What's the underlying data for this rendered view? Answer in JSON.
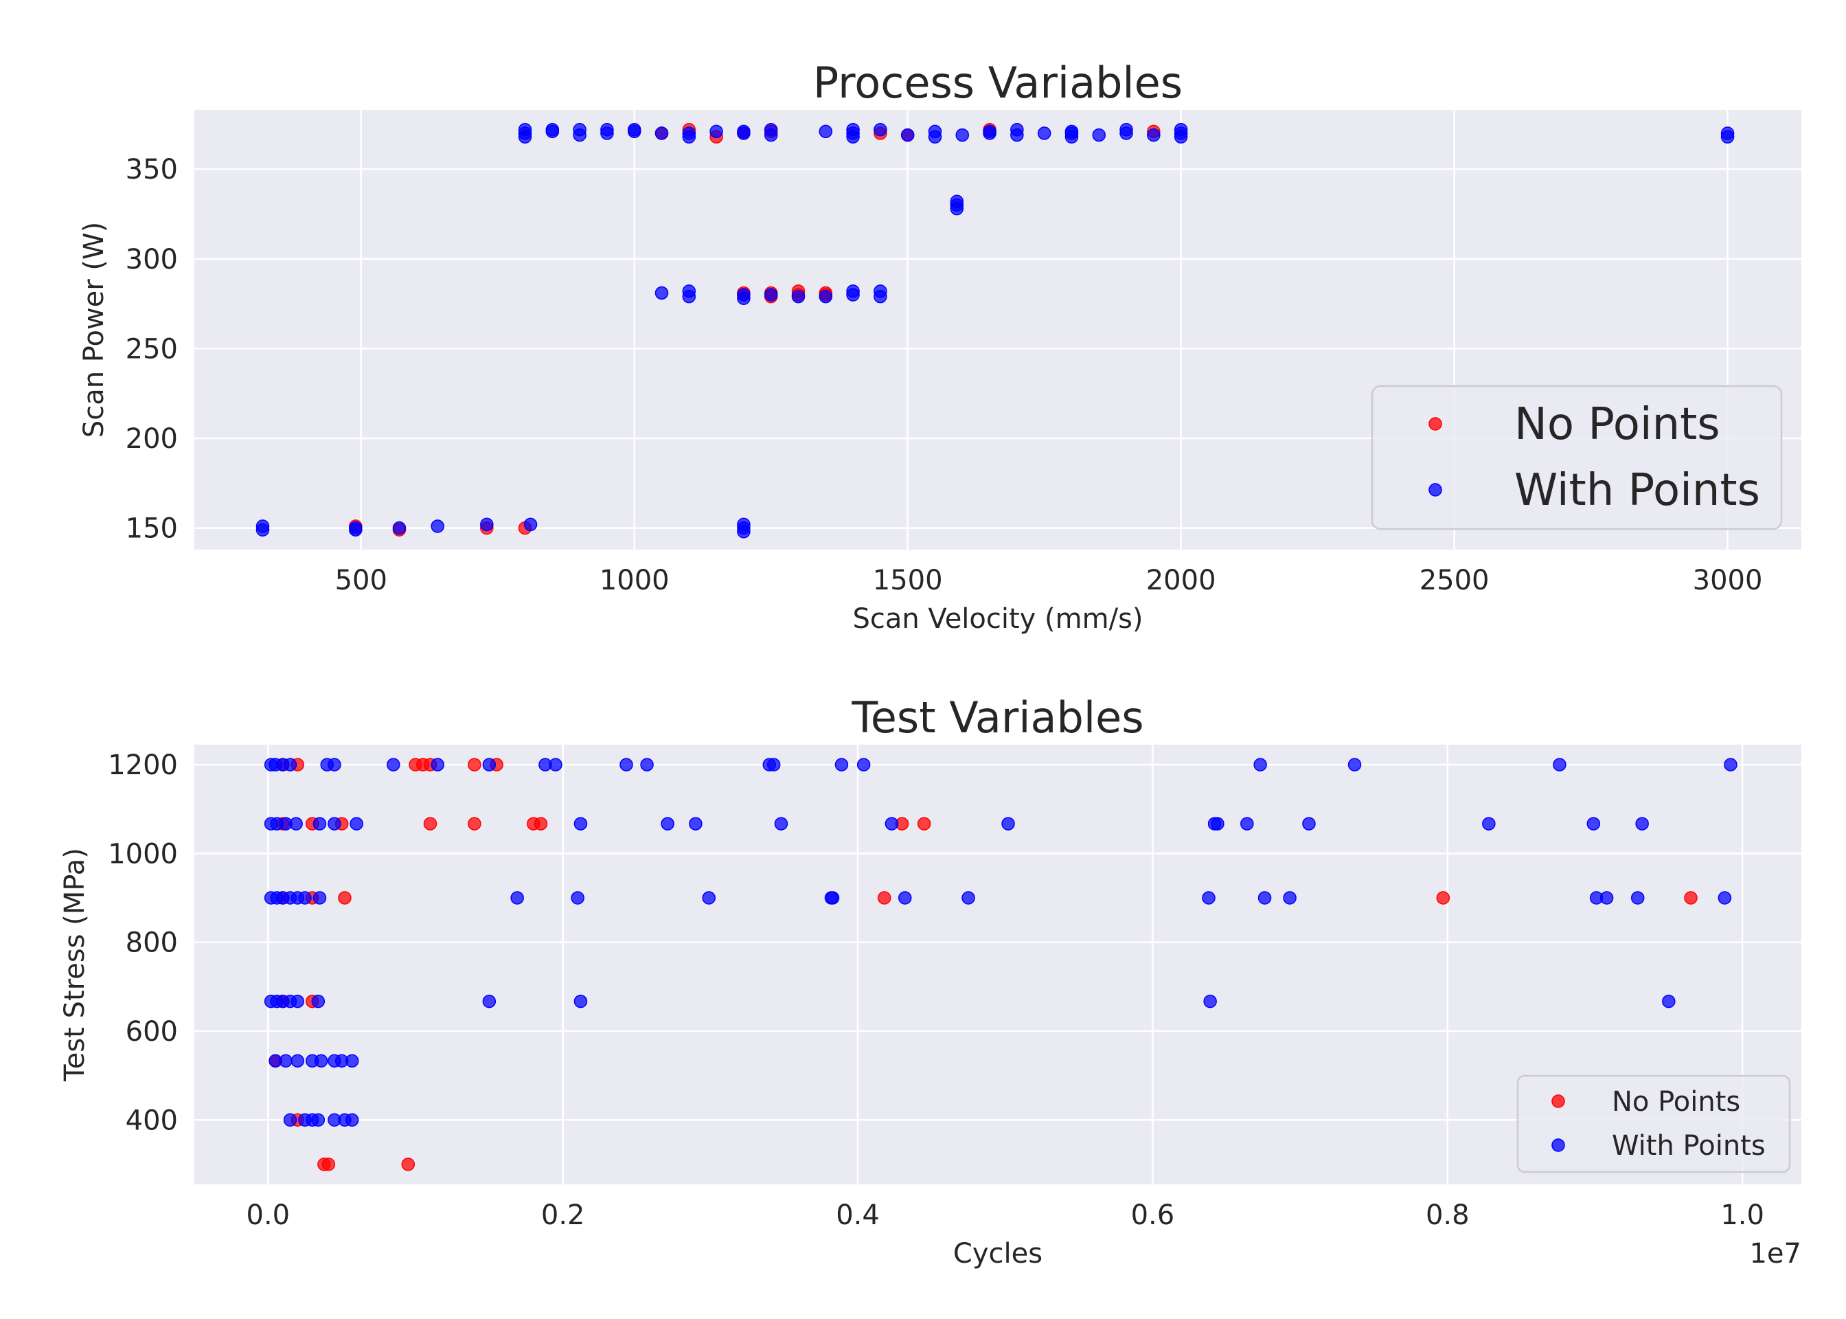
{
  "colors": {
    "no_points": "#ff0000",
    "with_points": "#0000ff",
    "plot_background": "#eaeaf2",
    "grid": "#ffffff",
    "text": "#262626"
  },
  "chart_data": [
    {
      "type": "scatter",
      "title": "Process Variables",
      "xlabel": "Scan Velocity (mm/s)",
      "ylabel": "Scan Power (W)",
      "xlim": [
        195,
        3135
      ],
      "ylim": [
        138,
        383
      ],
      "xticks": [
        500,
        1000,
        1500,
        2000,
        2500,
        3000
      ],
      "xtick_labels": [
        "500",
        "1000",
        "1500",
        "2000",
        "2500",
        "3000"
      ],
      "yticks": [
        150,
        200,
        250,
        300,
        350
      ],
      "ytick_labels": [
        "150",
        "200",
        "250",
        "300",
        "350"
      ],
      "grid": true,
      "legend_position": "lower-right",
      "series": [
        {
          "name": "No Points",
          "color": "#ff0000",
          "x": [
            490,
            570,
            730,
            800,
            1050,
            1100,
            1150,
            1200,
            1250,
            1300,
            1350,
            1450,
            1500,
            1650,
            1950,
            1250,
            1300,
            1350,
            1200,
            1200,
            1250
          ],
          "y": [
            151,
            149,
            150,
            150,
            370,
            372,
            368,
            370,
            371,
            280,
            281,
            370,
            369,
            372,
            371,
            279,
            282,
            280,
            280,
            281,
            281
          ]
        },
        {
          "name": "With Points",
          "color": "#0000ff",
          "x": [
            320,
            320,
            490,
            490,
            570,
            640,
            730,
            810,
            800,
            800,
            800,
            850,
            850,
            900,
            900,
            950,
            950,
            1000,
            1000,
            1050,
            1100,
            1100,
            1150,
            1200,
            1200,
            1250,
            1250,
            1350,
            1400,
            1400,
            1400,
            1450,
            1500,
            1550,
            1550,
            1600,
            1650,
            1650,
            1700,
            1700,
            1750,
            1800,
            1800,
            1800,
            1850,
            1900,
            1900,
            1950,
            2000,
            2000,
            2000,
            3000,
            3000,
            1590,
            1590,
            1590,
            1050,
            1100,
            1100,
            1200,
            1200,
            1250,
            1300,
            1350,
            1400,
            1400,
            1450,
            1450,
            1200,
            1200,
            1200
          ],
          "y": [
            151,
            149,
            150,
            149,
            150,
            151,
            152,
            152,
            372,
            368,
            370,
            371,
            372,
            369,
            372,
            370,
            372,
            371,
            372,
            370,
            370,
            368,
            371,
            370,
            371,
            369,
            372,
            371,
            368,
            370,
            372,
            372,
            369,
            368,
            371,
            369,
            370,
            371,
            369,
            372,
            370,
            368,
            370,
            371,
            369,
            370,
            372,
            369,
            368,
            370,
            372,
            368,
            370,
            328,
            330,
            332,
            281,
            279,
            282,
            278,
            280,
            280,
            279,
            279,
            280,
            282,
            279,
            282,
            148,
            150,
            152
          ]
        }
      ]
    },
    {
      "type": "scatter",
      "title": "Test Variables",
      "xlabel": "Cycles",
      "ylabel": "Test Stress (MPa)",
      "x_offset_label": "1e7",
      "xlim": [
        -500000,
        10400000
      ],
      "ylim": [
        255,
        1245
      ],
      "xticks": [
        0,
        2000000,
        4000000,
        6000000,
        8000000,
        10000000
      ],
      "xtick_labels": [
        "0.0",
        "0.2",
        "0.4",
        "0.6",
        "0.8",
        "1.0"
      ],
      "yticks": [
        400,
        600,
        800,
        1000,
        1200
      ],
      "ytick_labels": [
        "400",
        "600",
        "800",
        "1000",
        "1200"
      ],
      "grid": true,
      "legend_position": "lower-right",
      "series": [
        {
          "name": "No Points",
          "color": "#ff0000",
          "x": [
            100000,
            200000,
            1000000,
            1050000,
            1100000,
            1400000,
            1550000,
            100000,
            300000,
            500000,
            1100000,
            1400000,
            1800000,
            1850000,
            4300000,
            4450000,
            100000,
            300000,
            520000,
            4180000,
            7970000,
            9650000,
            100000,
            300000,
            380000,
            410000,
            950000,
            50000,
            200000
          ],
          "y": [
            1200,
            1200,
            1200,
            1200,
            1200,
            1200,
            1200,
            1067,
            1067,
            1067,
            1067,
            1067,
            1067,
            1067,
            1067,
            1067,
            900,
            900,
            900,
            900,
            900,
            900,
            667,
            667,
            300,
            300,
            300,
            533,
            400
          ]
        },
        {
          "name": "With Points",
          "color": "#0000ff",
          "x": [
            20000,
            50000,
            100000,
            150000,
            400000,
            450000,
            850000,
            1150000,
            1500000,
            1880000,
            1950000,
            2430000,
            2570000,
            3400000,
            3430000,
            3890000,
            4040000,
            6730000,
            7370000,
            8760000,
            9920000,
            20000,
            60000,
            120000,
            190000,
            350000,
            450000,
            600000,
            2120000,
            2710000,
            2900000,
            3480000,
            4230000,
            5020000,
            6420000,
            6440000,
            6640000,
            7060000,
            8280000,
            8990000,
            9320000,
            20000,
            60000,
            100000,
            150000,
            200000,
            250000,
            350000,
            1690000,
            2100000,
            2990000,
            3820000,
            3830000,
            4320000,
            4750000,
            6380000,
            6760000,
            6930000,
            9010000,
            9080000,
            9290000,
            9880000,
            20000,
            60000,
            100000,
            150000,
            200000,
            340000,
            1500000,
            2120000,
            6390000,
            9500000,
            50000,
            120000,
            200000,
            300000,
            360000,
            450000,
            500000,
            570000,
            150000,
            250000,
            300000,
            340000,
            450000,
            520000,
            570000
          ],
          "y": [
            1200,
            1200,
            1200,
            1200,
            1200,
            1200,
            1200,
            1200,
            1200,
            1200,
            1200,
            1200,
            1200,
            1200,
            1200,
            1200,
            1200,
            1200,
            1200,
            1200,
            1200,
            1067,
            1067,
            1067,
            1067,
            1067,
            1067,
            1067,
            1067,
            1067,
            1067,
            1067,
            1067,
            1067,
            1067,
            1067,
            1067,
            1067,
            1067,
            1067,
            1067,
            900,
            900,
            900,
            900,
            900,
            900,
            900,
            900,
            900,
            900,
            900,
            900,
            900,
            900,
            900,
            900,
            900,
            900,
            900,
            900,
            900,
            667,
            667,
            667,
            667,
            667,
            667,
            667,
            667,
            667,
            667,
            533,
            533,
            533,
            533,
            533,
            533,
            533,
            533,
            400,
            400,
            400,
            400,
            400,
            400,
            400
          ]
        }
      ]
    }
  ]
}
